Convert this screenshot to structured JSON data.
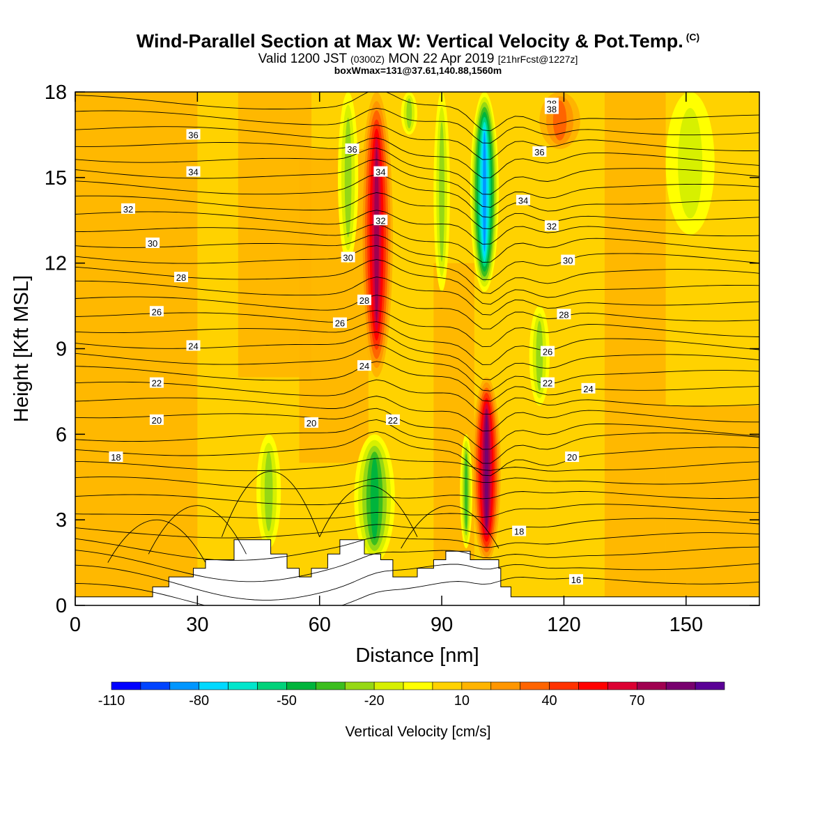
{
  "header": {
    "title": "Wind-Parallel Section at Max W: Vertical Velocity & Pot.Temp.",
    "title_mark": "(C)",
    "subtitle_valid": "Valid 1200 JST",
    "subtitle_z": "(0300Z)",
    "subtitle_date": "MON 22 Apr 2019",
    "subtitle_fcst": "[21hrFcst@1227z]",
    "subtitle_box": "boxWmax=131@37.61,140.88,1560m"
  },
  "chart_data": {
    "type": "heatmap",
    "xlabel": "Distance [nm]",
    "ylabel": "Height [Kft MSL]",
    "xlim": [
      0,
      168
    ],
    "ylim": [
      0,
      18
    ],
    "xticks": [
      "0",
      "30",
      "60",
      "90",
      "120",
      "150"
    ],
    "yticks": [
      "0",
      "3",
      "6",
      "9",
      "12",
      "15",
      "18"
    ],
    "colorbar": {
      "label": "Vertical Velocity [cm/s]",
      "tick_labels": [
        "-110",
        "-80",
        "-50",
        "-20",
        "10",
        "40",
        "70"
      ],
      "colors": [
        "#0000ff",
        "#0044ff",
        "#0096ff",
        "#00d9ff",
        "#00e6cc",
        "#00d27a",
        "#00b43c",
        "#3cbe1e",
        "#96d814",
        "#d7f000",
        "#ffff00",
        "#ffd200",
        "#ffb400",
        "#ff9600",
        "#ff6400",
        "#ff3200",
        "#ff0000",
        "#dc0032",
        "#a00050",
        "#78006e",
        "#5a0096"
      ]
    },
    "terrain_kft": [
      [
        0,
        0.3
      ],
      [
        19,
        0.3
      ],
      [
        19,
        0.65
      ],
      [
        23,
        0.65
      ],
      [
        23,
        1.0
      ],
      [
        29,
        1.0
      ],
      [
        29,
        1.3
      ],
      [
        32,
        1.3
      ],
      [
        32,
        1.6
      ],
      [
        39,
        1.6
      ],
      [
        39,
        2.3
      ],
      [
        48,
        2.3
      ],
      [
        48,
        1.8
      ],
      [
        52,
        1.8
      ],
      [
        52,
        1.3
      ],
      [
        55,
        1.3
      ],
      [
        55,
        1.0
      ],
      [
        58,
        1.0
      ],
      [
        58,
        1.3
      ],
      [
        62,
        1.3
      ],
      [
        62,
        1.8
      ],
      [
        65,
        1.8
      ],
      [
        65,
        2.3
      ],
      [
        71,
        2.3
      ],
      [
        71,
        1.8
      ],
      [
        75,
        1.8
      ],
      [
        75,
        1.6
      ],
      [
        78,
        1.6
      ],
      [
        78,
        1.0
      ],
      [
        84,
        1.0
      ],
      [
        84,
        1.3
      ],
      [
        88,
        1.3
      ],
      [
        88,
        1.6
      ],
      [
        91,
        1.6
      ],
      [
        91,
        1.9
      ],
      [
        97,
        1.9
      ],
      [
        97,
        1.6
      ],
      [
        104,
        1.6
      ],
      [
        104,
        1.3
      ],
      [
        104.5,
        1.3
      ],
      [
        104.5,
        0.65
      ],
      [
        107,
        0.65
      ],
      [
        107,
        0.3
      ],
      [
        168,
        0.3
      ]
    ],
    "w_features": [
      {
        "x": 74,
        "x_half": 4,
        "y0": 8,
        "y1": 18,
        "value": 70
      },
      {
        "x": 100.5,
        "x_half": 3.5,
        "y0": 11,
        "y1": 18,
        "value": -80
      },
      {
        "x": 101,
        "x_half": 3.5,
        "y0": 1.5,
        "y1": 8,
        "value": 85
      },
      {
        "x": 73.5,
        "x_half": 5,
        "y0": 1.5,
        "y1": 6,
        "value": -45
      },
      {
        "x": 114,
        "x_half": 2.5,
        "y0": 7,
        "y1": 10.5,
        "value": -25
      },
      {
        "x": 67,
        "x_half": 2.5,
        "y0": 12,
        "y1": 18,
        "value": -25
      },
      {
        "x": 90,
        "x_half": 2,
        "y0": 11,
        "y1": 18,
        "value": -20
      },
      {
        "x": 47.5,
        "x_half": 3,
        "y0": 2,
        "y1": 6,
        "value": -20
      },
      {
        "x": 96,
        "x_half": 1.5,
        "y0": 2,
        "y1": 6,
        "value": -30
      },
      {
        "x": 119,
        "x_half": 5,
        "y0": 16,
        "y1": 18,
        "value": 35
      },
      {
        "x": 82,
        "x_half": 2,
        "y0": 16.5,
        "y1": 18,
        "value": -25
      },
      {
        "x": 151,
        "x_half": 6,
        "y0": 13,
        "y1": 18,
        "value": -15
      }
    ],
    "theta_contours": [
      {
        "label": "16",
        "level_kft": 1.0,
        "label_pos": [
          123,
          0.9
        ]
      },
      {
        "label": "18",
        "level_kft": 5.2,
        "label_pos": [
          10,
          5.2
        ]
      },
      {
        "label": "20",
        "level_kft": 6.5,
        "label_pos": [
          20,
          6.5
        ]
      },
      {
        "label": "22",
        "level_kft": 7.8,
        "label_pos": [
          20,
          7.8
        ]
      },
      {
        "label": "24",
        "level_kft": 9.1,
        "label_pos": [
          29,
          9.1
        ]
      },
      {
        "label": "26",
        "level_kft": 10.3,
        "label_pos": [
          20,
          10.3
        ]
      },
      {
        "label": "28",
        "level_kft": 11.5,
        "label_pos": [
          26,
          11.5
        ]
      },
      {
        "label": "30",
        "level_kft": 12.7,
        "label_pos": [
          19,
          12.7
        ]
      },
      {
        "label": "32",
        "level_kft": 13.9,
        "label_pos": [
          13,
          13.9
        ]
      },
      {
        "label": "34",
        "level_kft": 15.2,
        "label_pos": [
          29,
          15.2
        ]
      },
      {
        "label": "36",
        "level_kft": 16.5,
        "label_pos": [
          29,
          16.5
        ]
      },
      {
        "label": "38",
        "level_kft": 17.6,
        "label_pos": [
          117,
          17.6
        ]
      }
    ],
    "extra_contour_labels": [
      {
        "label": "36",
        "pos": [
          68,
          16.0
        ]
      },
      {
        "label": "34",
        "pos": [
          75,
          15.2
        ]
      },
      {
        "label": "32",
        "pos": [
          75,
          13.5
        ]
      },
      {
        "label": "30",
        "pos": [
          67,
          12.2
        ]
      },
      {
        "label": "28",
        "pos": [
          71,
          10.7
        ]
      },
      {
        "label": "26",
        "pos": [
          65,
          9.9
        ]
      },
      {
        "label": "24",
        "pos": [
          71,
          8.4
        ]
      },
      {
        "label": "22",
        "pos": [
          78,
          6.5
        ]
      },
      {
        "label": "20",
        "pos": [
          58,
          6.4
        ]
      },
      {
        "label": "38",
        "pos": [
          117,
          17.4
        ]
      },
      {
        "label": "36",
        "pos": [
          114,
          15.9
        ]
      },
      {
        "label": "34",
        "pos": [
          110,
          14.2
        ]
      },
      {
        "label": "32",
        "pos": [
          117,
          13.3
        ]
      },
      {
        "label": "30",
        "pos": [
          121,
          12.1
        ]
      },
      {
        "label": "28",
        "pos": [
          120,
          10.2
        ]
      },
      {
        "label": "26",
        "pos": [
          116,
          8.9
        ]
      },
      {
        "label": "22",
        "pos": [
          116,
          7.8
        ]
      },
      {
        "label": "24",
        "pos": [
          126,
          7.6
        ]
      },
      {
        "label": "20",
        "pos": [
          122,
          5.2
        ]
      },
      {
        "label": "18",
        "pos": [
          109,
          2.6
        ]
      }
    ]
  }
}
